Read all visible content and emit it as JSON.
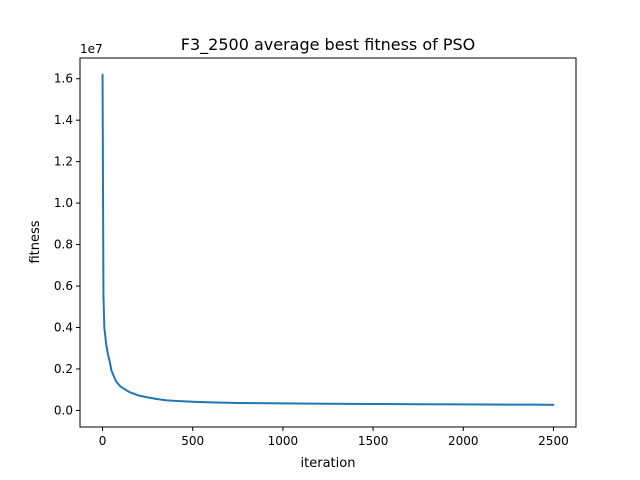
{
  "chart_data": {
    "type": "line",
    "title": "F3_2500 average best fitness of PSO",
    "xlabel": "iteration",
    "ylabel": "fitness",
    "y_offset_label": "1e7",
    "xlim": [
      -125,
      2625
    ],
    "ylim": [
      -0.08,
      1.7
    ],
    "x_ticks": [
      0,
      500,
      1000,
      1500,
      2000,
      2500
    ],
    "x_tick_labels": [
      "0",
      "500",
      "1000",
      "1500",
      "2000",
      "2500"
    ],
    "y_ticks": [
      0.0,
      0.2,
      0.4,
      0.6,
      0.8,
      1.0,
      1.2,
      1.4,
      1.6
    ],
    "y_tick_labels": [
      "0.0",
      "0.2",
      "0.4",
      "0.6",
      "0.8",
      "1.0",
      "1.2",
      "1.4",
      "1.6"
    ],
    "grid": false,
    "series": [
      {
        "color": "#1f77b4",
        "x": [
          0,
          5,
          10,
          20,
          30,
          40,
          50,
          75,
          100,
          150,
          200,
          250,
          300,
          350,
          400,
          500,
          600,
          750,
          1000,
          1250,
          1500,
          1750,
          2000,
          2250,
          2400,
          2500
        ],
        "y": [
          1.62,
          0.55,
          0.4,
          0.32,
          0.27,
          0.235,
          0.19,
          0.14,
          0.115,
          0.088,
          0.072,
          0.063,
          0.055,
          0.049,
          0.046,
          0.042,
          0.039,
          0.036,
          0.034,
          0.032,
          0.031,
          0.03,
          0.029,
          0.028,
          0.028,
          0.027
        ]
      }
    ]
  }
}
